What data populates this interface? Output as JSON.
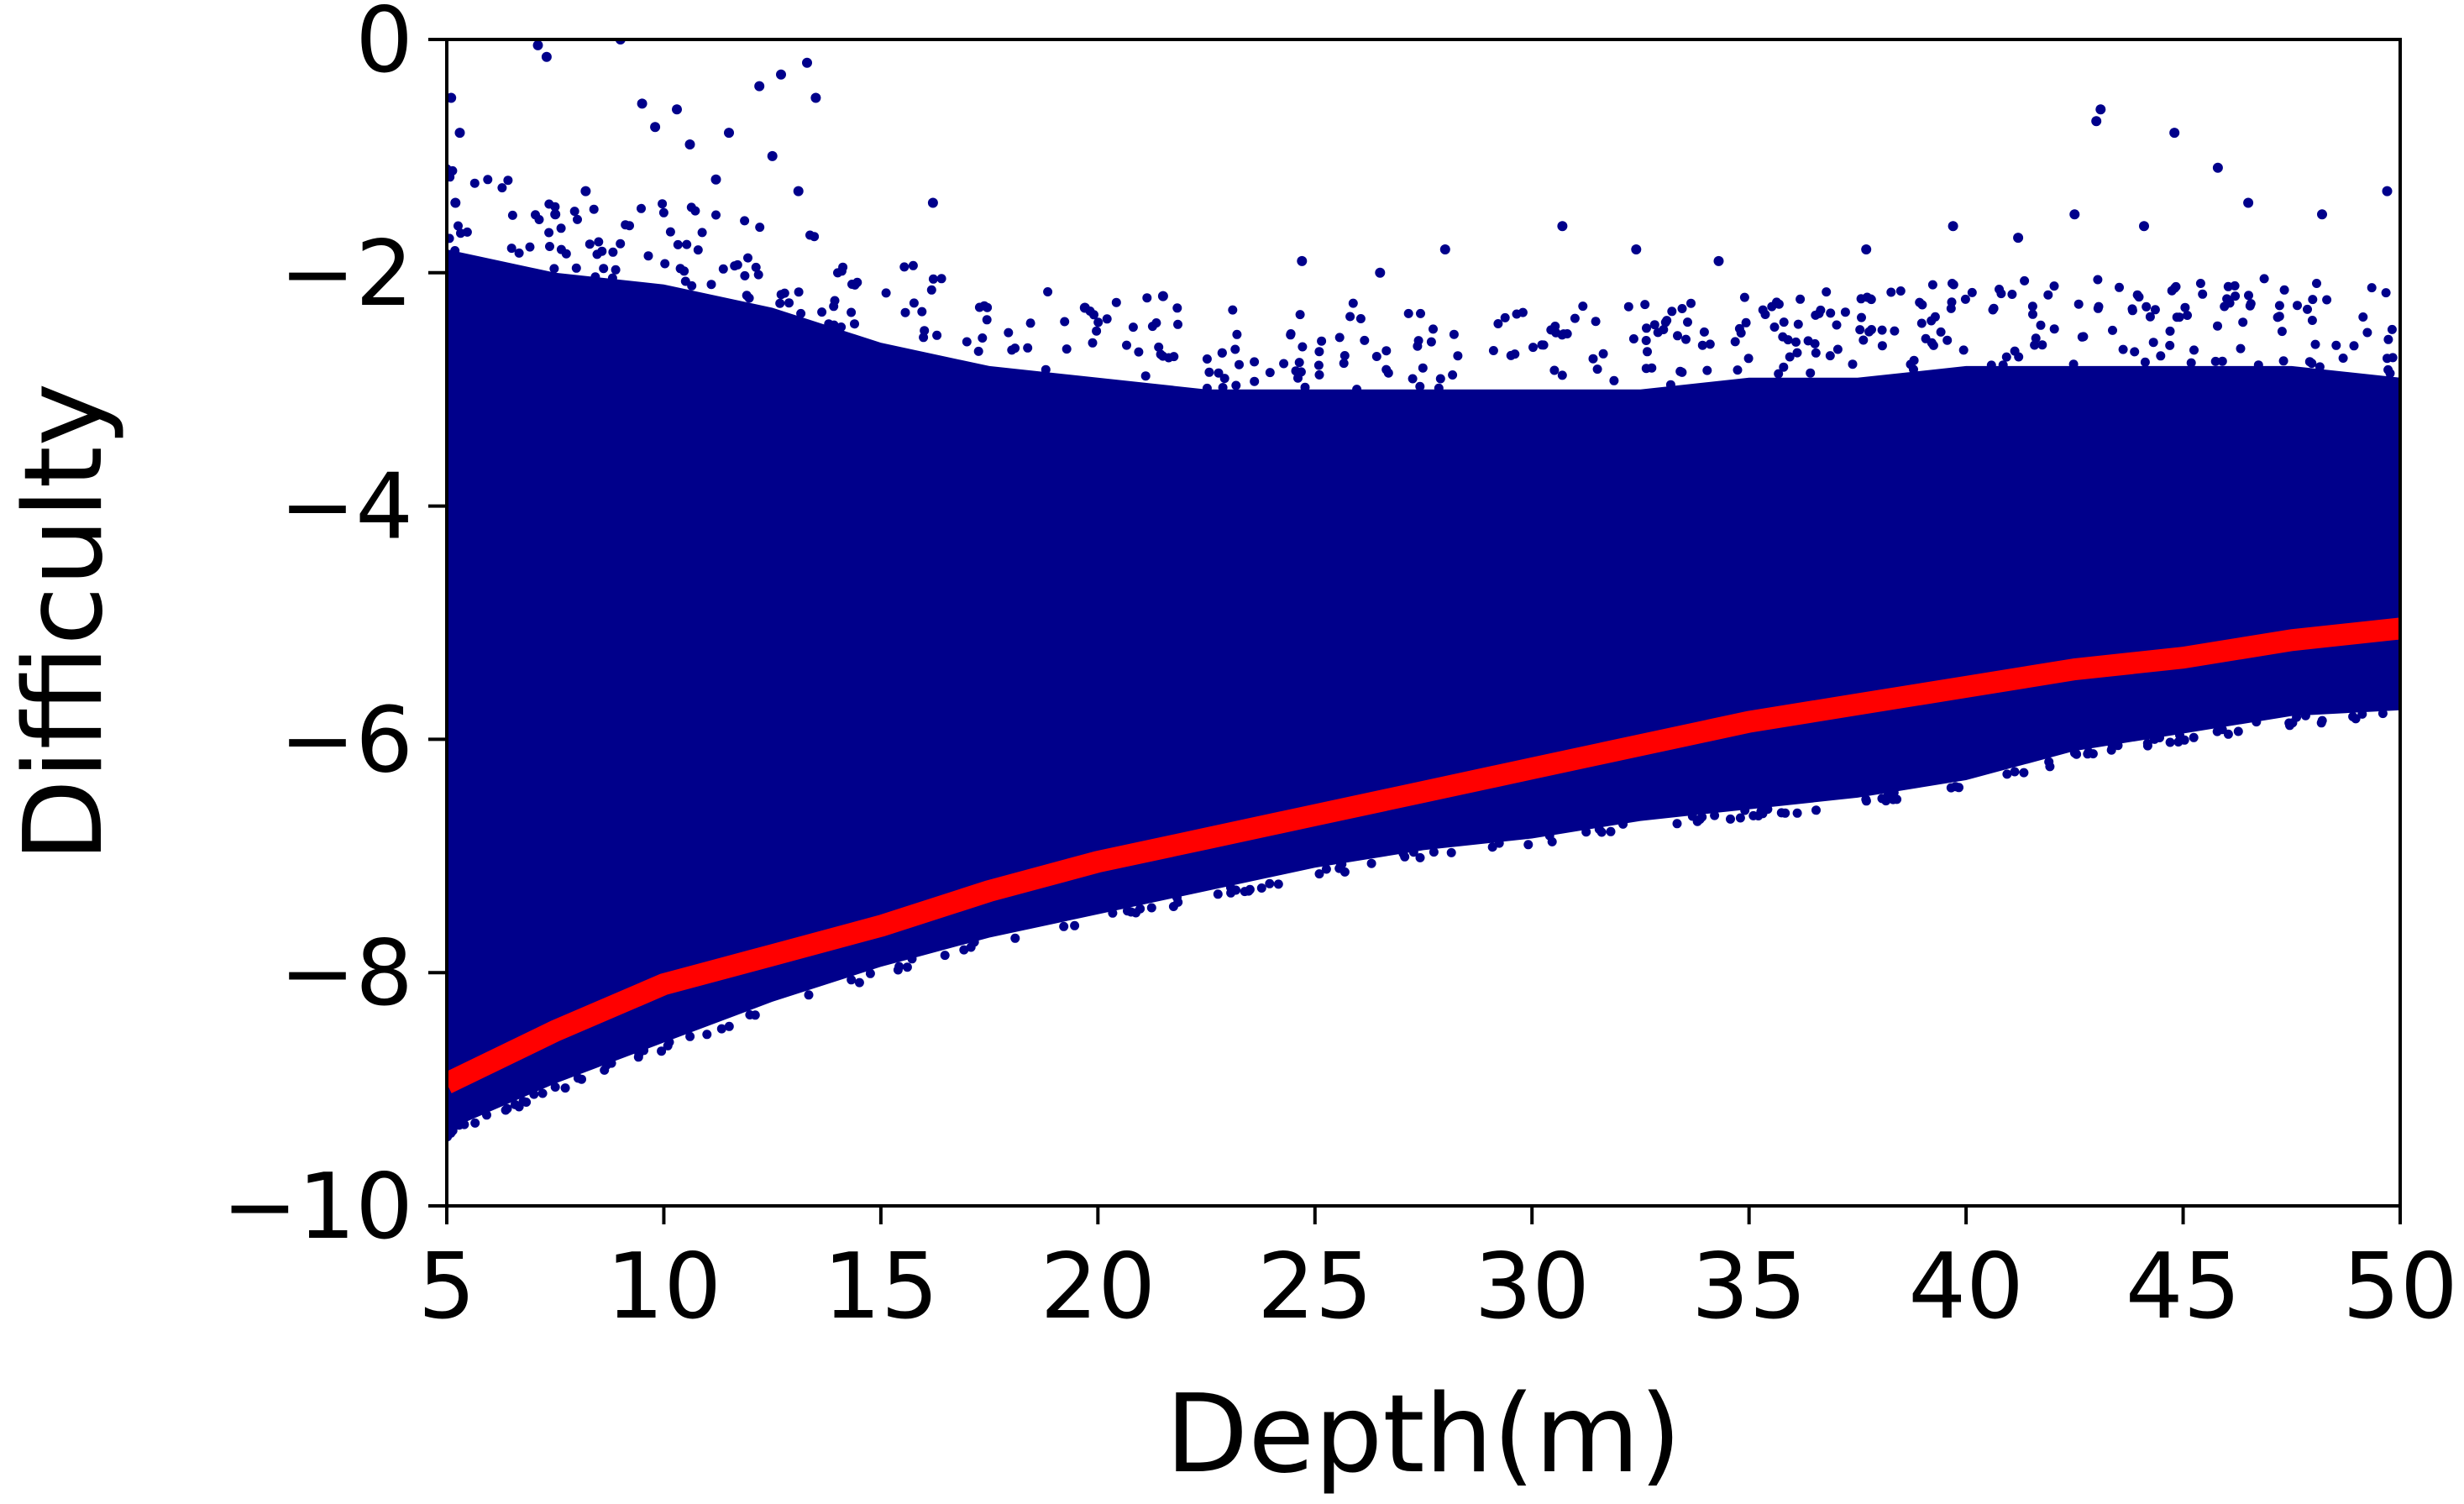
{
  "chart_data": {
    "type": "scatter",
    "title": "",
    "xlabel": "Depth(m)",
    "ylabel": "Difficulty",
    "xlim": [
      5,
      50
    ],
    "ylim": [
      -10,
      0
    ],
    "xticks": [
      5,
      10,
      15,
      20,
      25,
      30,
      35,
      40,
      45,
      50
    ],
    "yticks": [
      0,
      -2,
      -4,
      -6,
      -8,
      -10
    ],
    "xtick_labels": [
      "5",
      "10",
      "15",
      "20",
      "25",
      "30",
      "35",
      "40",
      "45",
      "50"
    ],
    "ytick_labels": [
      "0",
      "−2",
      "−4",
      "−6",
      "−8",
      "−10"
    ],
    "grid": false,
    "legend": "none",
    "series": [
      {
        "type": "scatter",
        "color": "#00008b",
        "band": {
          "x": [
            5,
            7.5,
            10,
            12.5,
            15,
            17.5,
            20,
            22.5,
            25,
            27.5,
            30,
            32.5,
            35,
            37.5,
            40,
            42.5,
            45,
            47.5,
            50
          ],
          "upper": [
            -1.8,
            -2.0,
            -2.1,
            -2.3,
            -2.6,
            -2.8,
            -2.9,
            -3.0,
            -3.0,
            -3.0,
            -3.0,
            -3.0,
            -2.9,
            -2.9,
            -2.8,
            -2.8,
            -2.8,
            -2.8,
            -2.9
          ],
          "lower": [
            -9.35,
            -8.95,
            -8.6,
            -8.25,
            -7.95,
            -7.7,
            -7.5,
            -7.3,
            -7.1,
            -6.95,
            -6.85,
            -6.7,
            -6.6,
            -6.5,
            -6.35,
            -6.1,
            -5.95,
            -5.8,
            -5.75
          ]
        },
        "outliers": [
          [
            5.1,
            -0.5
          ],
          [
            5.3,
            -0.8
          ],
          [
            5.2,
            -1.4
          ],
          [
            7.1,
            -0.05
          ],
          [
            7.3,
            -0.15
          ],
          [
            9.0,
            0.0
          ],
          [
            9.5,
            -0.55
          ],
          [
            9.8,
            -0.75
          ],
          [
            10.3,
            -0.6
          ],
          [
            10.6,
            -0.9
          ],
          [
            11.2,
            -1.2
          ],
          [
            11.5,
            -0.8
          ],
          [
            12.2,
            -0.4
          ],
          [
            12.5,
            -1.0
          ],
          [
            12.7,
            -0.3
          ],
          [
            13.1,
            -1.3
          ],
          [
            13.3,
            -0.2
          ],
          [
            13.5,
            -0.5
          ],
          [
            8.2,
            -1.3
          ],
          [
            7.5,
            -1.5
          ],
          [
            16.2,
            -1.4
          ],
          [
            43.1,
            -0.6
          ],
          [
            43.0,
            -0.7
          ],
          [
            44.8,
            -0.8
          ],
          [
            45.8,
            -1.1
          ],
          [
            42.5,
            -1.5
          ],
          [
            44.1,
            -1.6
          ],
          [
            46.5,
            -1.4
          ],
          [
            48.2,
            -1.5
          ],
          [
            49.7,
            -1.3
          ],
          [
            30.7,
            -1.6
          ],
          [
            32.4,
            -1.8
          ],
          [
            28.0,
            -1.8
          ],
          [
            24.7,
            -1.9
          ],
          [
            39.7,
            -1.6
          ],
          [
            34.3,
            -1.9
          ],
          [
            19.7,
            -2.3
          ],
          [
            21.5,
            -2.2
          ],
          [
            26.5,
            -2.0
          ],
          [
            37.7,
            -1.8
          ],
          [
            41.2,
            -1.7
          ]
        ]
      },
      {
        "type": "line",
        "color": "#ff0000",
        "x": [
          5,
          7.5,
          10,
          12.5,
          15,
          17.5,
          20,
          22.5,
          25,
          27.5,
          30,
          32.5,
          35,
          37.5,
          40,
          42.5,
          45,
          47.5,
          50
        ],
        "y": [
          -8.95,
          -8.5,
          -8.1,
          -7.85,
          -7.6,
          -7.3,
          -7.05,
          -6.85,
          -6.65,
          -6.45,
          -6.25,
          -6.05,
          -5.85,
          -5.7,
          -5.55,
          -5.4,
          -5.3,
          -5.15,
          -5.05
        ]
      }
    ]
  }
}
